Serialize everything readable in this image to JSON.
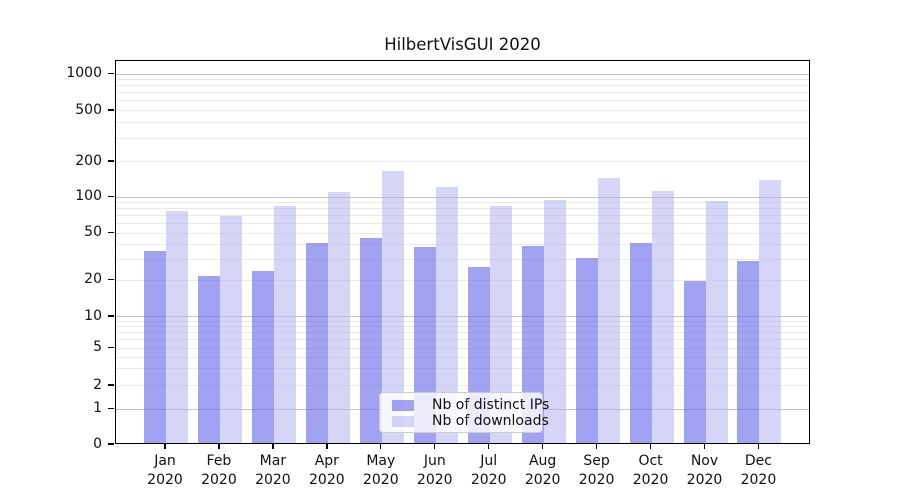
{
  "title": "HilbertVisGUI 2020",
  "legend": {
    "items": [
      {
        "label": "Nb of distinct IPs",
        "series": "ips"
      },
      {
        "label": "Nb of downloads",
        "series": "downloads"
      }
    ]
  },
  "colors": {
    "ips": "rgba(105,105,235,0.62)",
    "downloads": "rgba(178,178,243,0.55)",
    "grid_major": "#c2c2c2",
    "grid_minor": "#e9e9e9",
    "axis": "#000000",
    "text": "#111111"
  },
  "chart_data": {
    "type": "bar",
    "title": "HilbertVisGUI 2020",
    "categories": [
      "Jan",
      "Feb",
      "Mar",
      "Apr",
      "May",
      "Jun",
      "Jul",
      "Aug",
      "Sep",
      "Oct",
      "Nov",
      "Dec"
    ],
    "year": "2020",
    "series": [
      {
        "name": "Nb of distinct IPs",
        "values": [
          34,
          21,
          23,
          40,
          44,
          37,
          25,
          38,
          30,
          40,
          19,
          28
        ]
      },
      {
        "name": "Nb of downloads",
        "values": [
          74,
          67,
          81,
          108,
          160,
          118,
          82,
          92,
          140,
          110,
          90,
          135
        ]
      }
    ],
    "xlabel": "",
    "ylabel": "",
    "yticks": [
      0,
      1,
      2,
      5,
      10,
      20,
      50,
      100,
      200,
      500,
      1000
    ],
    "yscale": "asinh-like (linear 0-1, logarithmic above 1)",
    "ylim": [
      0,
      1300
    ],
    "grid": "horizontal: major at 1,10,100,1000; minor at 2-9 per decade",
    "legend_position": "lower center"
  }
}
